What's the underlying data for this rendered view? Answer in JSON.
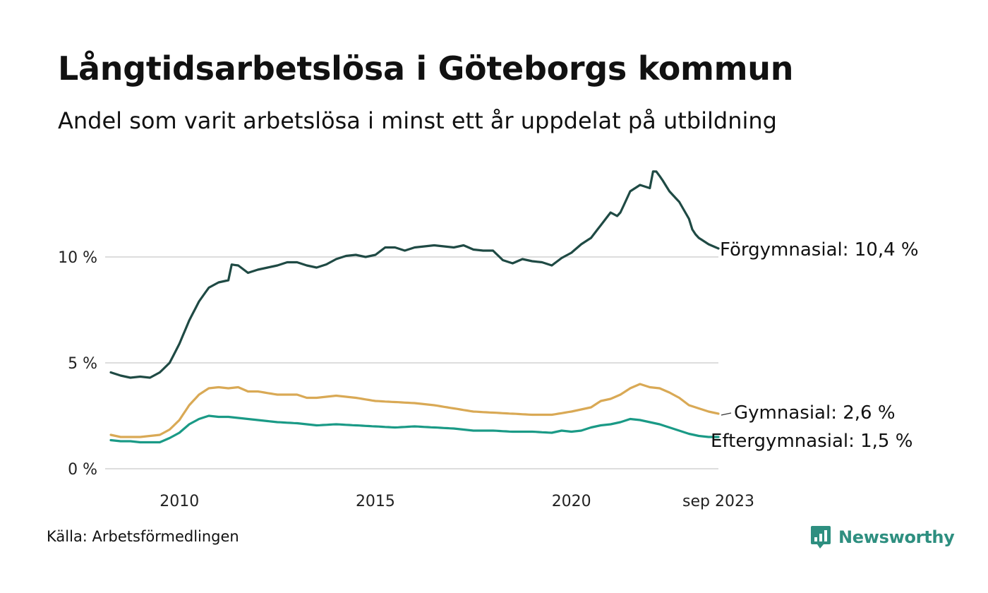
{
  "title": "Långtidsarbetslösa i Göteborgs kommun",
  "subtitle": "Andel som varit arbetslösa i minst ett år uppdelat på utbildning",
  "source": "Källa: Arbetsförmedlingen",
  "brand": {
    "name": "Newsworthy",
    "color": "#2e8f80",
    "icon": "bar-chart-bubble-icon"
  },
  "chart_data": {
    "type": "line",
    "x_start": 2008.25,
    "x_step_months": 1,
    "x_end_label": "sep 2023",
    "xlim": [
      2008.25,
      2023.75
    ],
    "ylim": [
      0,
      14.5
    ],
    "y_ticks": [
      {
        "value": 0,
        "label": "0 %"
      },
      {
        "value": 5,
        "label": "5 %"
      },
      {
        "value": 10,
        "label": "10 %"
      }
    ],
    "x_ticks": [
      {
        "value": 2010,
        "label": "2010"
      },
      {
        "value": 2015,
        "label": "2015"
      },
      {
        "value": 2020,
        "label": "2020"
      },
      {
        "value": 2023.75,
        "label": "sep 2023"
      }
    ],
    "grid": "horizontal",
    "series": [
      {
        "name": "Förgymnasial",
        "label": "Förgymnasial: 10,4 %",
        "color": "#1f4a44",
        "keypoints": [
          [
            2008.25,
            4.55
          ],
          [
            2008.5,
            4.4
          ],
          [
            2008.75,
            4.3
          ],
          [
            2009.0,
            4.35
          ],
          [
            2009.25,
            4.3
          ],
          [
            2009.5,
            4.55
          ],
          [
            2009.75,
            5.0
          ],
          [
            2010.0,
            5.9
          ],
          [
            2010.25,
            7.0
          ],
          [
            2010.5,
            7.9
          ],
          [
            2010.75,
            8.55
          ],
          [
            2011.0,
            8.8
          ],
          [
            2011.25,
            8.9
          ],
          [
            2011.3,
            9.65
          ],
          [
            2011.5,
            9.6
          ],
          [
            2011.75,
            9.25
          ],
          [
            2012.0,
            9.4
          ],
          [
            2012.25,
            9.5
          ],
          [
            2012.5,
            9.6
          ],
          [
            2012.75,
            9.75
          ],
          [
            2013.0,
            9.75
          ],
          [
            2013.25,
            9.6
          ],
          [
            2013.5,
            9.5
          ],
          [
            2013.75,
            9.65
          ],
          [
            2014.0,
            9.9
          ],
          [
            2014.25,
            10.05
          ],
          [
            2014.5,
            10.1
          ],
          [
            2014.75,
            10.0
          ],
          [
            2015.0,
            10.1
          ],
          [
            2015.25,
            10.45
          ],
          [
            2015.5,
            10.45
          ],
          [
            2015.75,
            10.3
          ],
          [
            2016.0,
            10.45
          ],
          [
            2016.25,
            10.5
          ],
          [
            2016.5,
            10.55
          ],
          [
            2016.75,
            10.5
          ],
          [
            2017.0,
            10.45
          ],
          [
            2017.25,
            10.55
          ],
          [
            2017.5,
            10.35
          ],
          [
            2017.75,
            10.3
          ],
          [
            2018.0,
            10.3
          ],
          [
            2018.25,
            9.85
          ],
          [
            2018.5,
            9.7
          ],
          [
            2018.75,
            9.9
          ],
          [
            2019.0,
            9.8
          ],
          [
            2019.25,
            9.75
          ],
          [
            2019.5,
            9.6
          ],
          [
            2019.75,
            9.95
          ],
          [
            2020.0,
            10.2
          ],
          [
            2020.25,
            10.6
          ],
          [
            2020.5,
            10.9
          ],
          [
            2020.75,
            11.5
          ],
          [
            2021.0,
            12.1
          ],
          [
            2021.2,
            11.9
          ],
          [
            2021.5,
            13.1
          ],
          [
            2021.75,
            13.4
          ],
          [
            2022.0,
            13.25
          ],
          [
            2022.1,
            14.2
          ],
          [
            2022.3,
            13.7
          ],
          [
            2022.5,
            13.1
          ],
          [
            2022.75,
            12.6
          ],
          [
            2023.0,
            11.8
          ],
          [
            2023.1,
            11.2
          ],
          [
            2023.25,
            10.9
          ],
          [
            2023.5,
            10.6
          ],
          [
            2023.75,
            10.4
          ]
        ]
      },
      {
        "name": "Gymnasial",
        "label": "Gymnasial:  2,6 %",
        "color": "#d9a955",
        "keypoints": [
          [
            2008.25,
            1.6
          ],
          [
            2008.5,
            1.5
          ],
          [
            2008.75,
            1.5
          ],
          [
            2009.0,
            1.5
          ],
          [
            2009.5,
            1.6
          ],
          [
            2009.75,
            1.85
          ],
          [
            2010.0,
            2.3
          ],
          [
            2010.25,
            3.0
          ],
          [
            2010.5,
            3.5
          ],
          [
            2010.75,
            3.8
          ],
          [
            2011.0,
            3.85
          ],
          [
            2011.25,
            3.8
          ],
          [
            2011.5,
            3.85
          ],
          [
            2011.75,
            3.65
          ],
          [
            2012.0,
            3.65
          ],
          [
            2012.5,
            3.5
          ],
          [
            2013.0,
            3.5
          ],
          [
            2013.25,
            3.35
          ],
          [
            2013.5,
            3.35
          ],
          [
            2013.75,
            3.4
          ],
          [
            2014.0,
            3.45
          ],
          [
            2014.5,
            3.35
          ],
          [
            2015.0,
            3.2
          ],
          [
            2015.5,
            3.15
          ],
          [
            2016.0,
            3.1
          ],
          [
            2016.5,
            3.0
          ],
          [
            2017.0,
            2.85
          ],
          [
            2017.5,
            2.7
          ],
          [
            2018.0,
            2.65
          ],
          [
            2018.5,
            2.6
          ],
          [
            2019.0,
            2.55
          ],
          [
            2019.5,
            2.55
          ],
          [
            2020.0,
            2.7
          ],
          [
            2020.5,
            2.9
          ],
          [
            2020.75,
            3.2
          ],
          [
            2021.0,
            3.3
          ],
          [
            2021.25,
            3.5
          ],
          [
            2021.5,
            3.8
          ],
          [
            2021.75,
            4.0
          ],
          [
            2022.0,
            3.85
          ],
          [
            2022.25,
            3.8
          ],
          [
            2022.5,
            3.6
          ],
          [
            2022.75,
            3.35
          ],
          [
            2023.0,
            3.0
          ],
          [
            2023.25,
            2.85
          ],
          [
            2023.5,
            2.7
          ],
          [
            2023.75,
            2.6
          ]
        ]
      },
      {
        "name": "Eftergymnasial",
        "label": "Eftergymnasial:  1,5 %",
        "color": "#1a9a86",
        "keypoints": [
          [
            2008.25,
            1.35
          ],
          [
            2008.5,
            1.3
          ],
          [
            2008.75,
            1.3
          ],
          [
            2009.0,
            1.25
          ],
          [
            2009.5,
            1.25
          ],
          [
            2009.75,
            1.45
          ],
          [
            2010.0,
            1.7
          ],
          [
            2010.25,
            2.1
          ],
          [
            2010.5,
            2.35
          ],
          [
            2010.75,
            2.5
          ],
          [
            2011.0,
            2.45
          ],
          [
            2011.25,
            2.45
          ],
          [
            2011.5,
            2.4
          ],
          [
            2012.0,
            2.3
          ],
          [
            2012.5,
            2.2
          ],
          [
            2013.0,
            2.15
          ],
          [
            2013.5,
            2.05
          ],
          [
            2014.0,
            2.1
          ],
          [
            2014.5,
            2.05
          ],
          [
            2015.0,
            2.0
          ],
          [
            2015.5,
            1.95
          ],
          [
            2016.0,
            2.0
          ],
          [
            2016.5,
            1.95
          ],
          [
            2017.0,
            1.9
          ],
          [
            2017.5,
            1.8
          ],
          [
            2018.0,
            1.8
          ],
          [
            2018.5,
            1.75
          ],
          [
            2019.0,
            1.75
          ],
          [
            2019.5,
            1.7
          ],
          [
            2019.75,
            1.8
          ],
          [
            2020.0,
            1.75
          ],
          [
            2020.25,
            1.8
          ],
          [
            2020.5,
            1.95
          ],
          [
            2020.75,
            2.05
          ],
          [
            2021.0,
            2.1
          ],
          [
            2021.25,
            2.2
          ],
          [
            2021.5,
            2.35
          ],
          [
            2021.75,
            2.3
          ],
          [
            2022.0,
            2.2
          ],
          [
            2022.25,
            2.1
          ],
          [
            2022.5,
            1.95
          ],
          [
            2022.75,
            1.8
          ],
          [
            2023.0,
            1.65
          ],
          [
            2023.25,
            1.55
          ],
          [
            2023.5,
            1.5
          ],
          [
            2023.75,
            1.5
          ]
        ]
      }
    ]
  }
}
